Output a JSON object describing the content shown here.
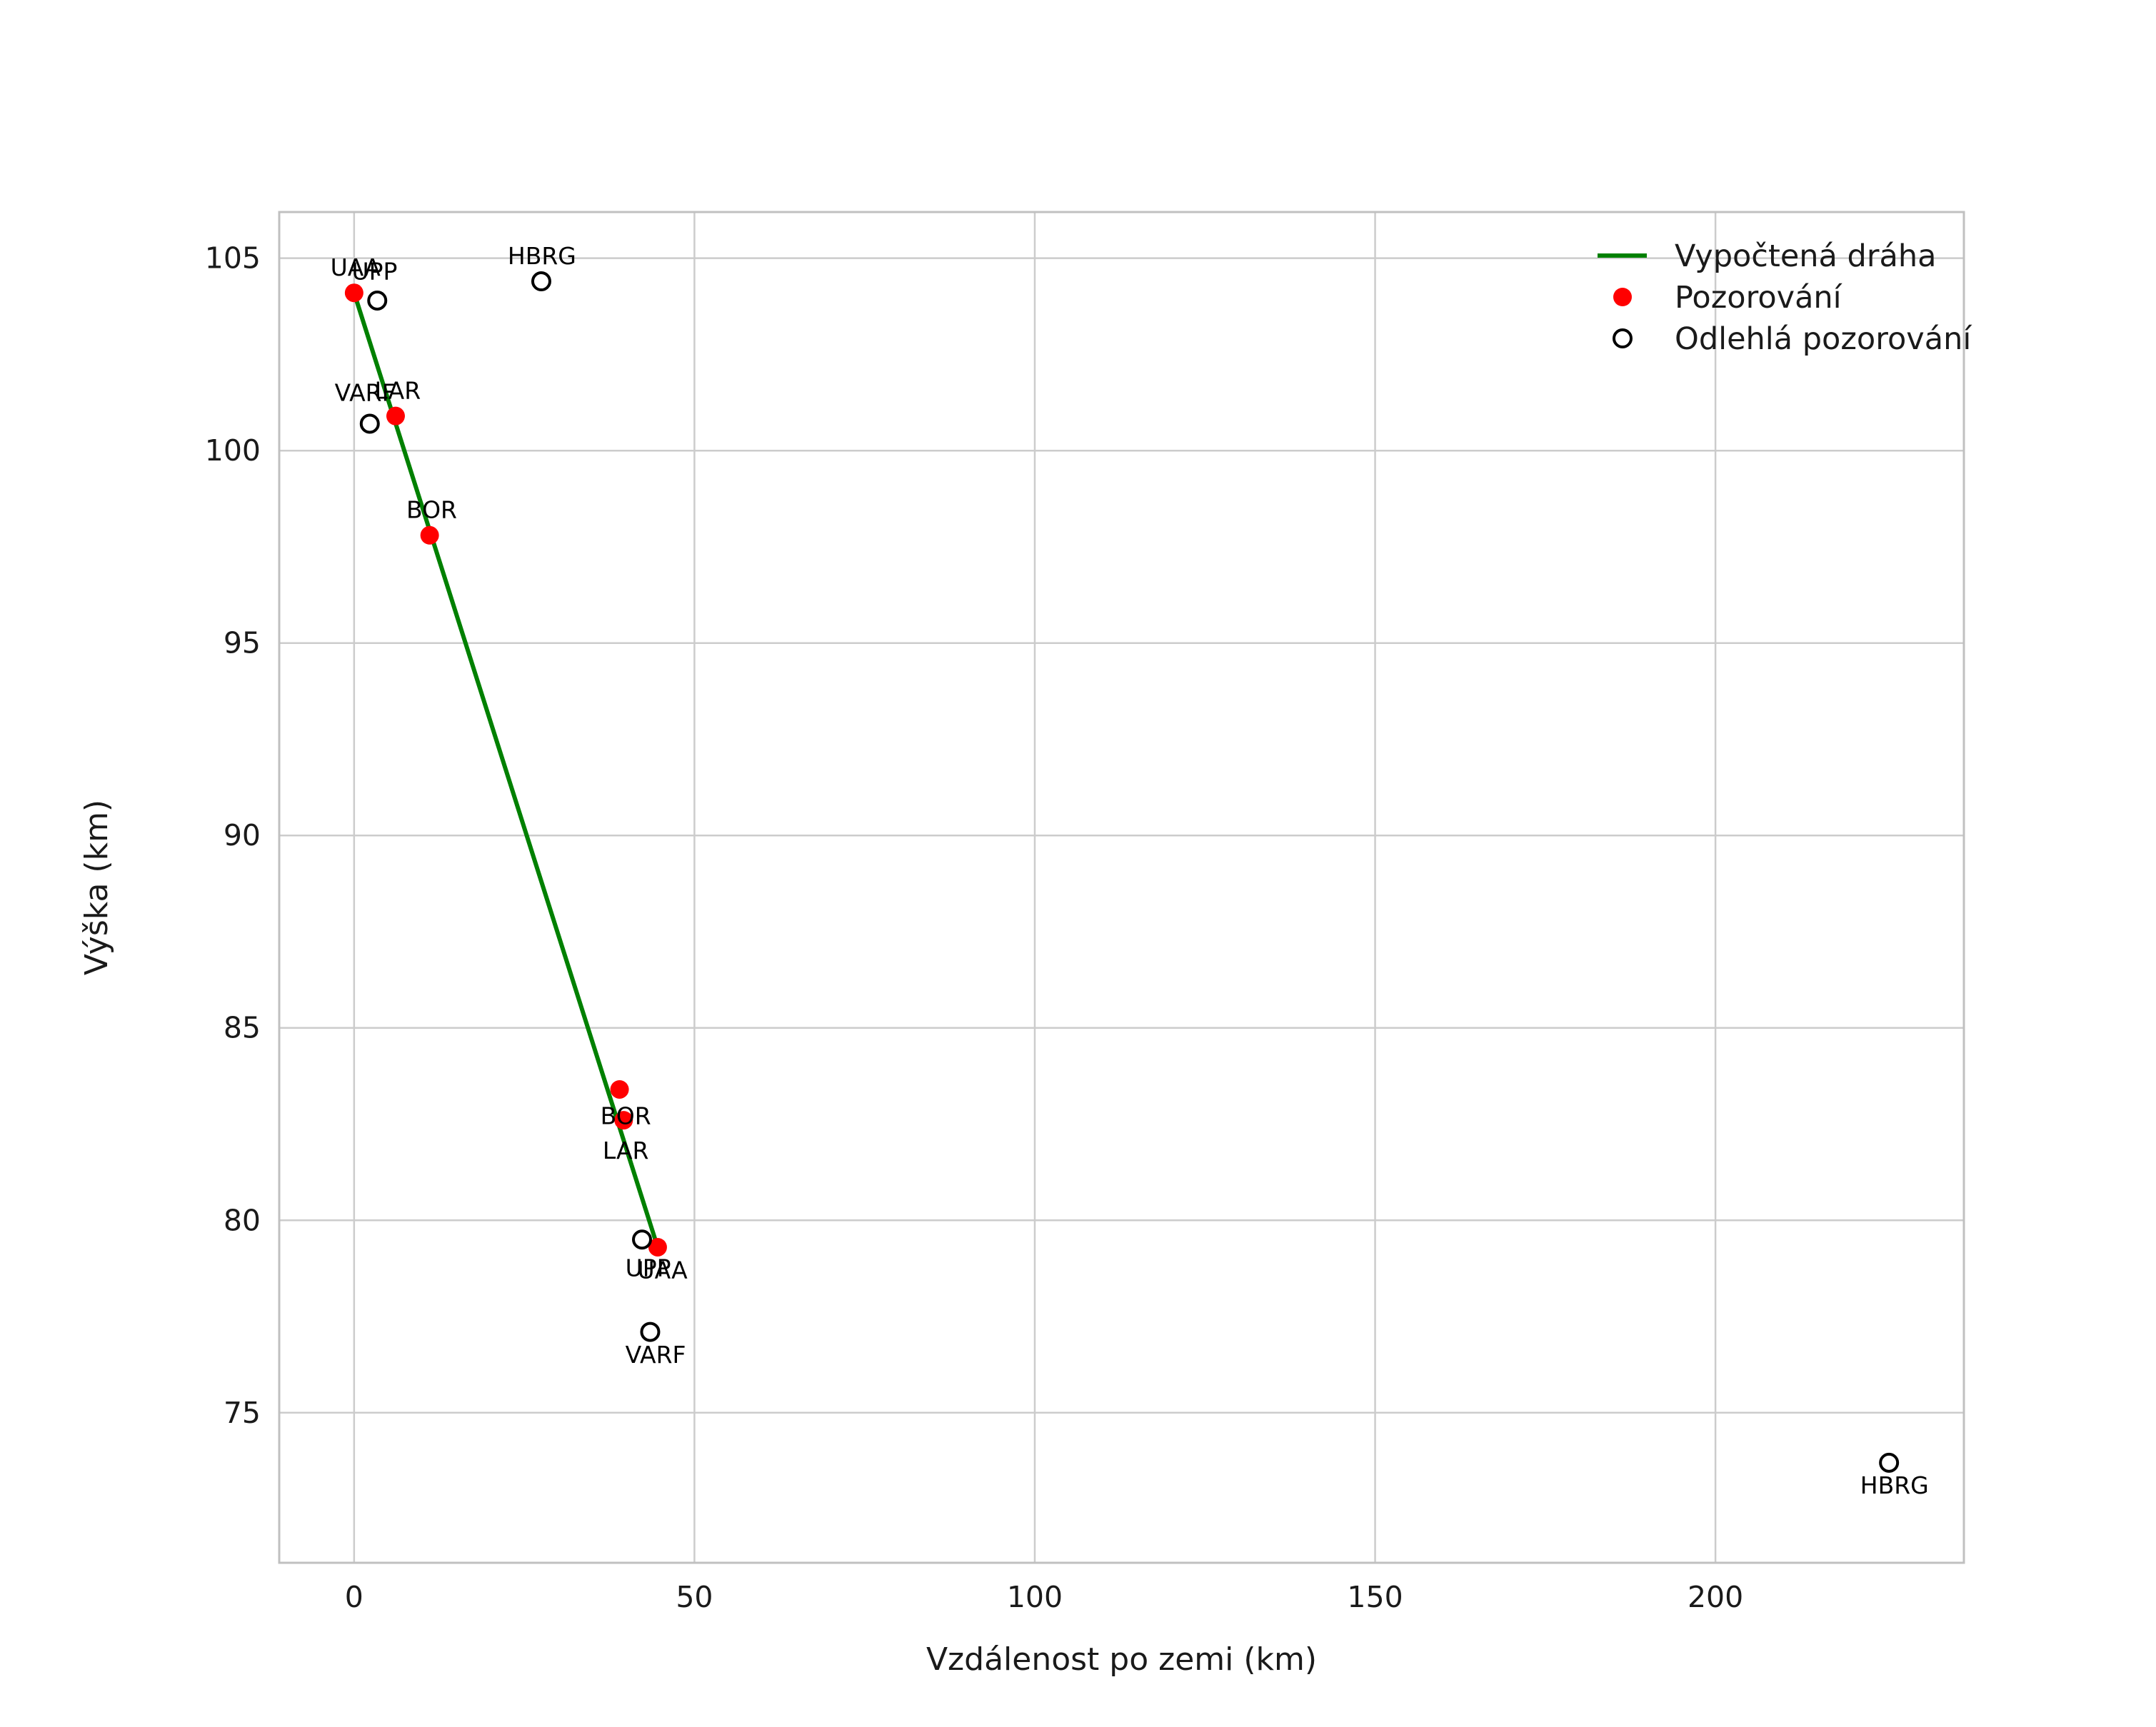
{
  "figure": {
    "background": "#ffffff"
  },
  "chart_data": {
    "type": "scatter",
    "title": "",
    "xlabel": "Vzdálenost po zemi (km)",
    "ylabel": "Výška (km)",
    "xlim": [
      -11,
      236.5
    ],
    "ylim": [
      71.1,
      106.2
    ],
    "xticks": [
      0,
      50,
      100,
      150,
      200
    ],
    "yticks": [
      75,
      80,
      85,
      90,
      95,
      100,
      105
    ],
    "grid": true,
    "colors": {
      "trajectory": "#008000",
      "observation": "#ff0000",
      "outlier_edge": "#000000",
      "grid": "#cccccc",
      "spine": "#c0c0c0",
      "text": "#1a1a1a",
      "label": "#000000"
    },
    "legend": {
      "position": "upper right",
      "frame": false,
      "entries": [
        {
          "marker": "line",
          "label": "Vypočtená dráha"
        },
        {
          "marker": "filled-circle",
          "label": "Pozorování"
        },
        {
          "marker": "open-circle",
          "label": "Odlehlá pozorování"
        }
      ]
    },
    "series": [
      {
        "name": "Vypočtená dráha",
        "type": "line",
        "points": [
          [
            0,
            104.1
          ],
          [
            44.6,
            79.3
          ]
        ]
      },
      {
        "name": "Pozorování",
        "type": "scatter",
        "marker": "filled-circle",
        "points": [
          {
            "station": "UAA",
            "x": 0.0,
            "y": 104.1,
            "label_x": 0.2,
            "label_y": 104.75
          },
          {
            "station": "LAR",
            "x": 6.1,
            "y": 100.9,
            "label_x": 6.4,
            "label_y": 101.55
          },
          {
            "station": "BOR",
            "x": 11.1,
            "y": 97.8,
            "label_x": 11.4,
            "label_y": 98.45
          },
          {
            "station": "BOR",
            "x": 39.0,
            "y": 83.4,
            "label_x": 39.9,
            "label_y": 82.7
          },
          {
            "station": "LAR",
            "x": 39.6,
            "y": 82.6,
            "label_x": 39.9,
            "label_y": 81.8
          },
          {
            "station": "UAA",
            "x": 44.6,
            "y": 79.3,
            "label_x": 45.3,
            "label_y": 78.7
          }
        ]
      },
      {
        "name": "Odlehlá pozorování",
        "type": "scatter",
        "marker": "open-circle",
        "points": [
          {
            "station": "UPP",
            "x": 3.4,
            "y": 103.9,
            "label_x": 3.0,
            "label_y": 104.65
          },
          {
            "station": "HBRG",
            "x": 27.5,
            "y": 104.4,
            "label_x": 27.6,
            "label_y": 105.05
          },
          {
            "station": "VARF",
            "x": 2.3,
            "y": 100.7,
            "label_x": 1.6,
            "label_y": 101.5
          },
          {
            "station": "UPP",
            "x": 42.3,
            "y": 79.5,
            "label_x": 43.2,
            "label_y": 78.75
          },
          {
            "station": "VARF",
            "x": 43.5,
            "y": 77.1,
            "label_x": 44.3,
            "label_y": 76.5
          },
          {
            "station": "HBRG",
            "x": 225.5,
            "y": 73.7,
            "label_x": 226.3,
            "label_y": 73.1
          }
        ]
      }
    ]
  }
}
